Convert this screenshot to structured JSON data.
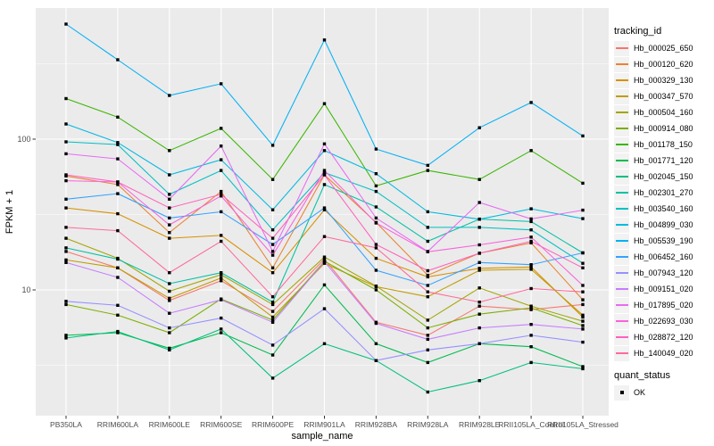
{
  "figure": {
    "background": "#FFFFFF",
    "panel_background": "#EBEBEB",
    "grid_major_color": "#FFFFFF",
    "grid_minor_color": "#FFFFFF",
    "tick_color": "#333333",
    "axis_text_color": "#4D4D4D"
  },
  "chart_data": {
    "type": "line",
    "title": "",
    "xlabel": "sample_name",
    "ylabel": "FPKM + 1",
    "y_scale": "log10",
    "y_tick_values": [
      100,
      10
    ],
    "y_minor_values": [
      316.23,
      31.623,
      3.1623
    ],
    "y_domain": [
      1.5,
      730
    ],
    "grid": "on",
    "marker": {
      "shape": "square",
      "color": "#000000",
      "size": 3.4
    },
    "legend_position": "right",
    "categories": [
      "PB350LA",
      "RRIM600LA",
      "RRIM600LE",
      "RRIM600SE",
      "RRIM600PE",
      "RRIM901LA",
      "RRIM928BA",
      "RRIM928LA",
      "RRIM928LE",
      "RRII105LA_Control",
      "RRII105LA_Stressed"
    ],
    "series": [
      {
        "name": "Hb_000025_650",
        "color": "#F8766D",
        "values": [
          18,
          14,
          8.5,
          11.5,
          7.2,
          16,
          6.1,
          5.0,
          7.8,
          7.4,
          8.0
        ]
      },
      {
        "name": "Hb_000120_620",
        "color": "#EA8331",
        "values": [
          57,
          50,
          24,
          45,
          14,
          58,
          28,
          12.5,
          17.5,
          20.5,
          8.6
        ]
      },
      {
        "name": "Hb_000329_130",
        "color": "#D89000",
        "values": [
          35,
          32,
          22,
          23,
          13,
          34,
          16.2,
          12.2,
          13.9,
          14.2,
          6.6
        ]
      },
      {
        "name": "Hb_000347_570",
        "color": "#C09B00",
        "values": [
          15.8,
          14,
          8.8,
          12,
          6.6,
          15,
          10.5,
          9.0,
          13.5,
          13.7,
          6.8
        ]
      },
      {
        "name": "Hb_000504_160",
        "color": "#A3A500",
        "values": [
          22,
          16.2,
          9.8,
          12.6,
          8.0,
          16.5,
          10.6,
          6.3,
          10.3,
          7.8,
          6.2
        ]
      },
      {
        "name": "Hb_000914_080",
        "color": "#7CAE00",
        "values": [
          8.0,
          6.8,
          5.2,
          8.7,
          6.3,
          15.5,
          10.0,
          5.6,
          6.9,
          7.6,
          5.8
        ]
      },
      {
        "name": "Hb_001178_150",
        "color": "#39B600",
        "values": [
          186,
          140,
          84,
          118,
          54,
          172,
          49,
          62,
          54,
          84,
          51
        ]
      },
      {
        "name": "Hb_001771_120",
        "color": "#00BB4E",
        "values": [
          5.0,
          5.2,
          4.1,
          5.2,
          3.7,
          10.8,
          4.4,
          3.3,
          4.4,
          4.2,
          3.1
        ]
      },
      {
        "name": "Hb_002045_150",
        "color": "#00BF7D",
        "values": [
          4.8,
          5.3,
          4.0,
          5.5,
          2.6,
          4.4,
          3.4,
          2.1,
          2.5,
          3.3,
          3.0
        ]
      },
      {
        "name": "Hb_002301_270",
        "color": "#00C1A3",
        "values": [
          19,
          16,
          11,
          13,
          8.3,
          50,
          35.5,
          21,
          29.5,
          28.4,
          17.6
        ]
      },
      {
        "name": "Hb_003540_160",
        "color": "#00BFC4",
        "values": [
          96,
          92,
          43,
          62,
          25,
          60,
          45,
          26,
          26,
          25,
          15
        ]
      },
      {
        "name": "Hb_004899_030",
        "color": "#00BAE0",
        "values": [
          126,
          95,
          58,
          73,
          34,
          84,
          59,
          33,
          29.4,
          34.5,
          29.7
        ]
      },
      {
        "name": "Hb_005539_190",
        "color": "#00B0F6",
        "values": [
          580,
          336,
          195,
          233,
          91,
          455,
          86,
          67,
          119,
          175,
          105
        ]
      },
      {
        "name": "Hb_006452_160",
        "color": "#35A2FF",
        "values": [
          40,
          43.5,
          30,
          33,
          20,
          35,
          13.5,
          10.7,
          15.2,
          14.7,
          17.6
        ]
      },
      {
        "name": "Hb_007943_120",
        "color": "#9590FF",
        "values": [
          8.4,
          7.9,
          5.6,
          6.5,
          4.3,
          7.5,
          3.4,
          4.0,
          4.4,
          5.0,
          4.5
        ]
      },
      {
        "name": "Hb_009151_020",
        "color": "#C77CFF",
        "values": [
          15.2,
          12.1,
          7.0,
          8.6,
          6.1,
          15.4,
          6.0,
          4.7,
          5.6,
          5.9,
          5.5
        ]
      },
      {
        "name": "Hb_017895_020",
        "color": "#E76BF3",
        "values": [
          80,
          74,
          40,
          90,
          18,
          93,
          30,
          18,
          38,
          29.6,
          33.8
        ]
      },
      {
        "name": "Hb_022693_030",
        "color": "#FA62DB",
        "values": [
          53,
          52,
          27,
          42,
          17,
          62,
          27.8,
          17.9,
          19.9,
          22.4,
          10.7
        ]
      },
      {
        "name": "Hb_028872_120",
        "color": "#FF62BC",
        "values": [
          58,
          52,
          35,
          43,
          22,
          58,
          20,
          13.4,
          17.5,
          21,
          14
        ]
      },
      {
        "name": "Hb_140049_020",
        "color": "#FF6A98",
        "values": [
          26,
          24.7,
          13,
          21,
          9,
          22.6,
          19,
          9.7,
          8.3,
          10.2,
          9.7
        ]
      }
    ],
    "legends": [
      {
        "title": "tracking_id",
        "type": "line-swatches"
      },
      {
        "title": "quant_status",
        "items": [
          {
            "label": "OK",
            "marker": "black-square"
          }
        ]
      }
    ]
  }
}
